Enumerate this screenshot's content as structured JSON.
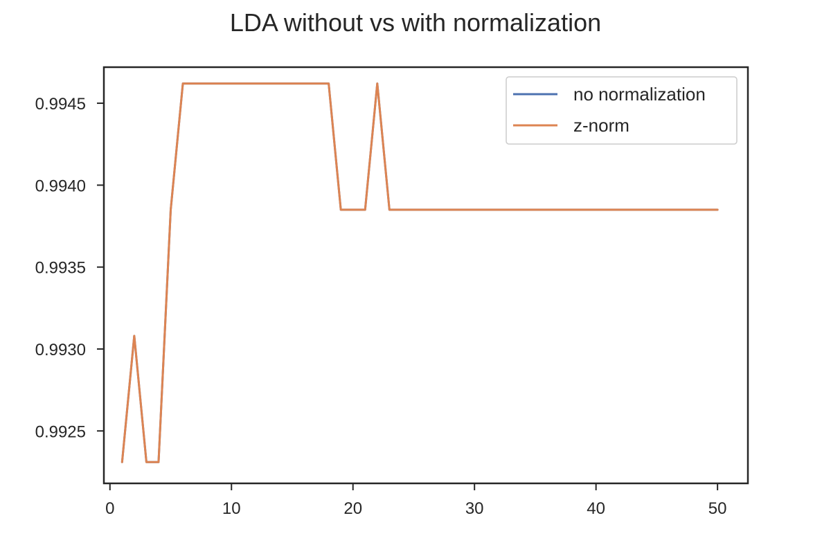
{
  "chart_data": {
    "type": "line",
    "title": "LDA without vs with normalization",
    "xlabel": "",
    "ylabel": "",
    "xlim": [
      -0.5,
      52.5
    ],
    "ylim": [
      0.99218,
      0.99472
    ],
    "xticks": [
      0,
      10,
      20,
      30,
      40,
      50
    ],
    "yticks": [
      0.9925,
      0.993,
      0.9935,
      0.994,
      0.9945
    ],
    "ytick_labels": [
      "0.9925",
      "0.9930",
      "0.9935",
      "0.9940",
      "0.9945"
    ],
    "grid": false,
    "legend_position": "top-right",
    "x": [
      1,
      2,
      3,
      4,
      5,
      6,
      7,
      8,
      9,
      10,
      11,
      12,
      13,
      14,
      15,
      16,
      17,
      18,
      19,
      20,
      21,
      22,
      23,
      24,
      25,
      26,
      27,
      28,
      29,
      30,
      31,
      32,
      33,
      34,
      35,
      36,
      37,
      38,
      39,
      40,
      41,
      42,
      43,
      44,
      45,
      46,
      47,
      48,
      49,
      50
    ],
    "series": [
      {
        "name": "no normalization",
        "color": "#4c72b0",
        "values": [
          0.99231,
          0.99308,
          0.99231,
          0.99231,
          0.99385,
          0.99462,
          0.99462,
          0.99462,
          0.99462,
          0.99462,
          0.99462,
          0.99462,
          0.99462,
          0.99462,
          0.99462,
          0.99462,
          0.99462,
          0.99462,
          0.99385,
          0.99385,
          0.99385,
          0.99462,
          0.99385,
          0.99385,
          0.99385,
          0.99385,
          0.99385,
          0.99385,
          0.99385,
          0.99385,
          0.99385,
          0.99385,
          0.99385,
          0.99385,
          0.99385,
          0.99385,
          0.99385,
          0.99385,
          0.99385,
          0.99385,
          0.99385,
          0.99385,
          0.99385,
          0.99385,
          0.99385,
          0.99385,
          0.99385,
          0.99385,
          0.99385,
          0.99385
        ]
      },
      {
        "name": "z-norm",
        "color": "#dd8452",
        "values": [
          0.99231,
          0.99308,
          0.99231,
          0.99231,
          0.99385,
          0.99462,
          0.99462,
          0.99462,
          0.99462,
          0.99462,
          0.99462,
          0.99462,
          0.99462,
          0.99462,
          0.99462,
          0.99462,
          0.99462,
          0.99462,
          0.99385,
          0.99385,
          0.99385,
          0.99462,
          0.99385,
          0.99385,
          0.99385,
          0.99385,
          0.99385,
          0.99385,
          0.99385,
          0.99385,
          0.99385,
          0.99385,
          0.99385,
          0.99385,
          0.99385,
          0.99385,
          0.99385,
          0.99385,
          0.99385,
          0.99385,
          0.99385,
          0.99385,
          0.99385,
          0.99385,
          0.99385,
          0.99385,
          0.99385,
          0.99385,
          0.99385,
          0.99385
        ]
      }
    ]
  }
}
